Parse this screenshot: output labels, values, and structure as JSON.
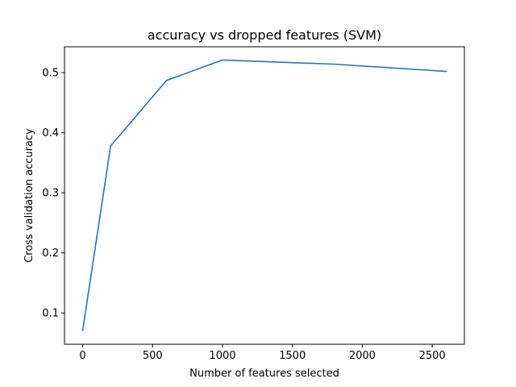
{
  "chart_data": {
    "type": "line",
    "title": "accuracy vs dropped features (SVM)",
    "xlabel": "Number of features selected",
    "ylabel": "Cross validation accuracy",
    "xlim": [
      -130,
      2730
    ],
    "ylim": [
      0.048,
      0.543
    ],
    "xticks": [
      0,
      500,
      1000,
      1500,
      2000,
      2500
    ],
    "yticks": [
      0.1,
      0.2,
      0.3,
      0.4,
      0.5
    ],
    "grid": false,
    "series": [
      {
        "color": "#1f77b4",
        "x": [
          0,
          200,
          600,
          1000,
          1800,
          2600
        ],
        "y": [
          0.071,
          0.378,
          0.487,
          0.521,
          0.514,
          0.502
        ]
      }
    ]
  }
}
